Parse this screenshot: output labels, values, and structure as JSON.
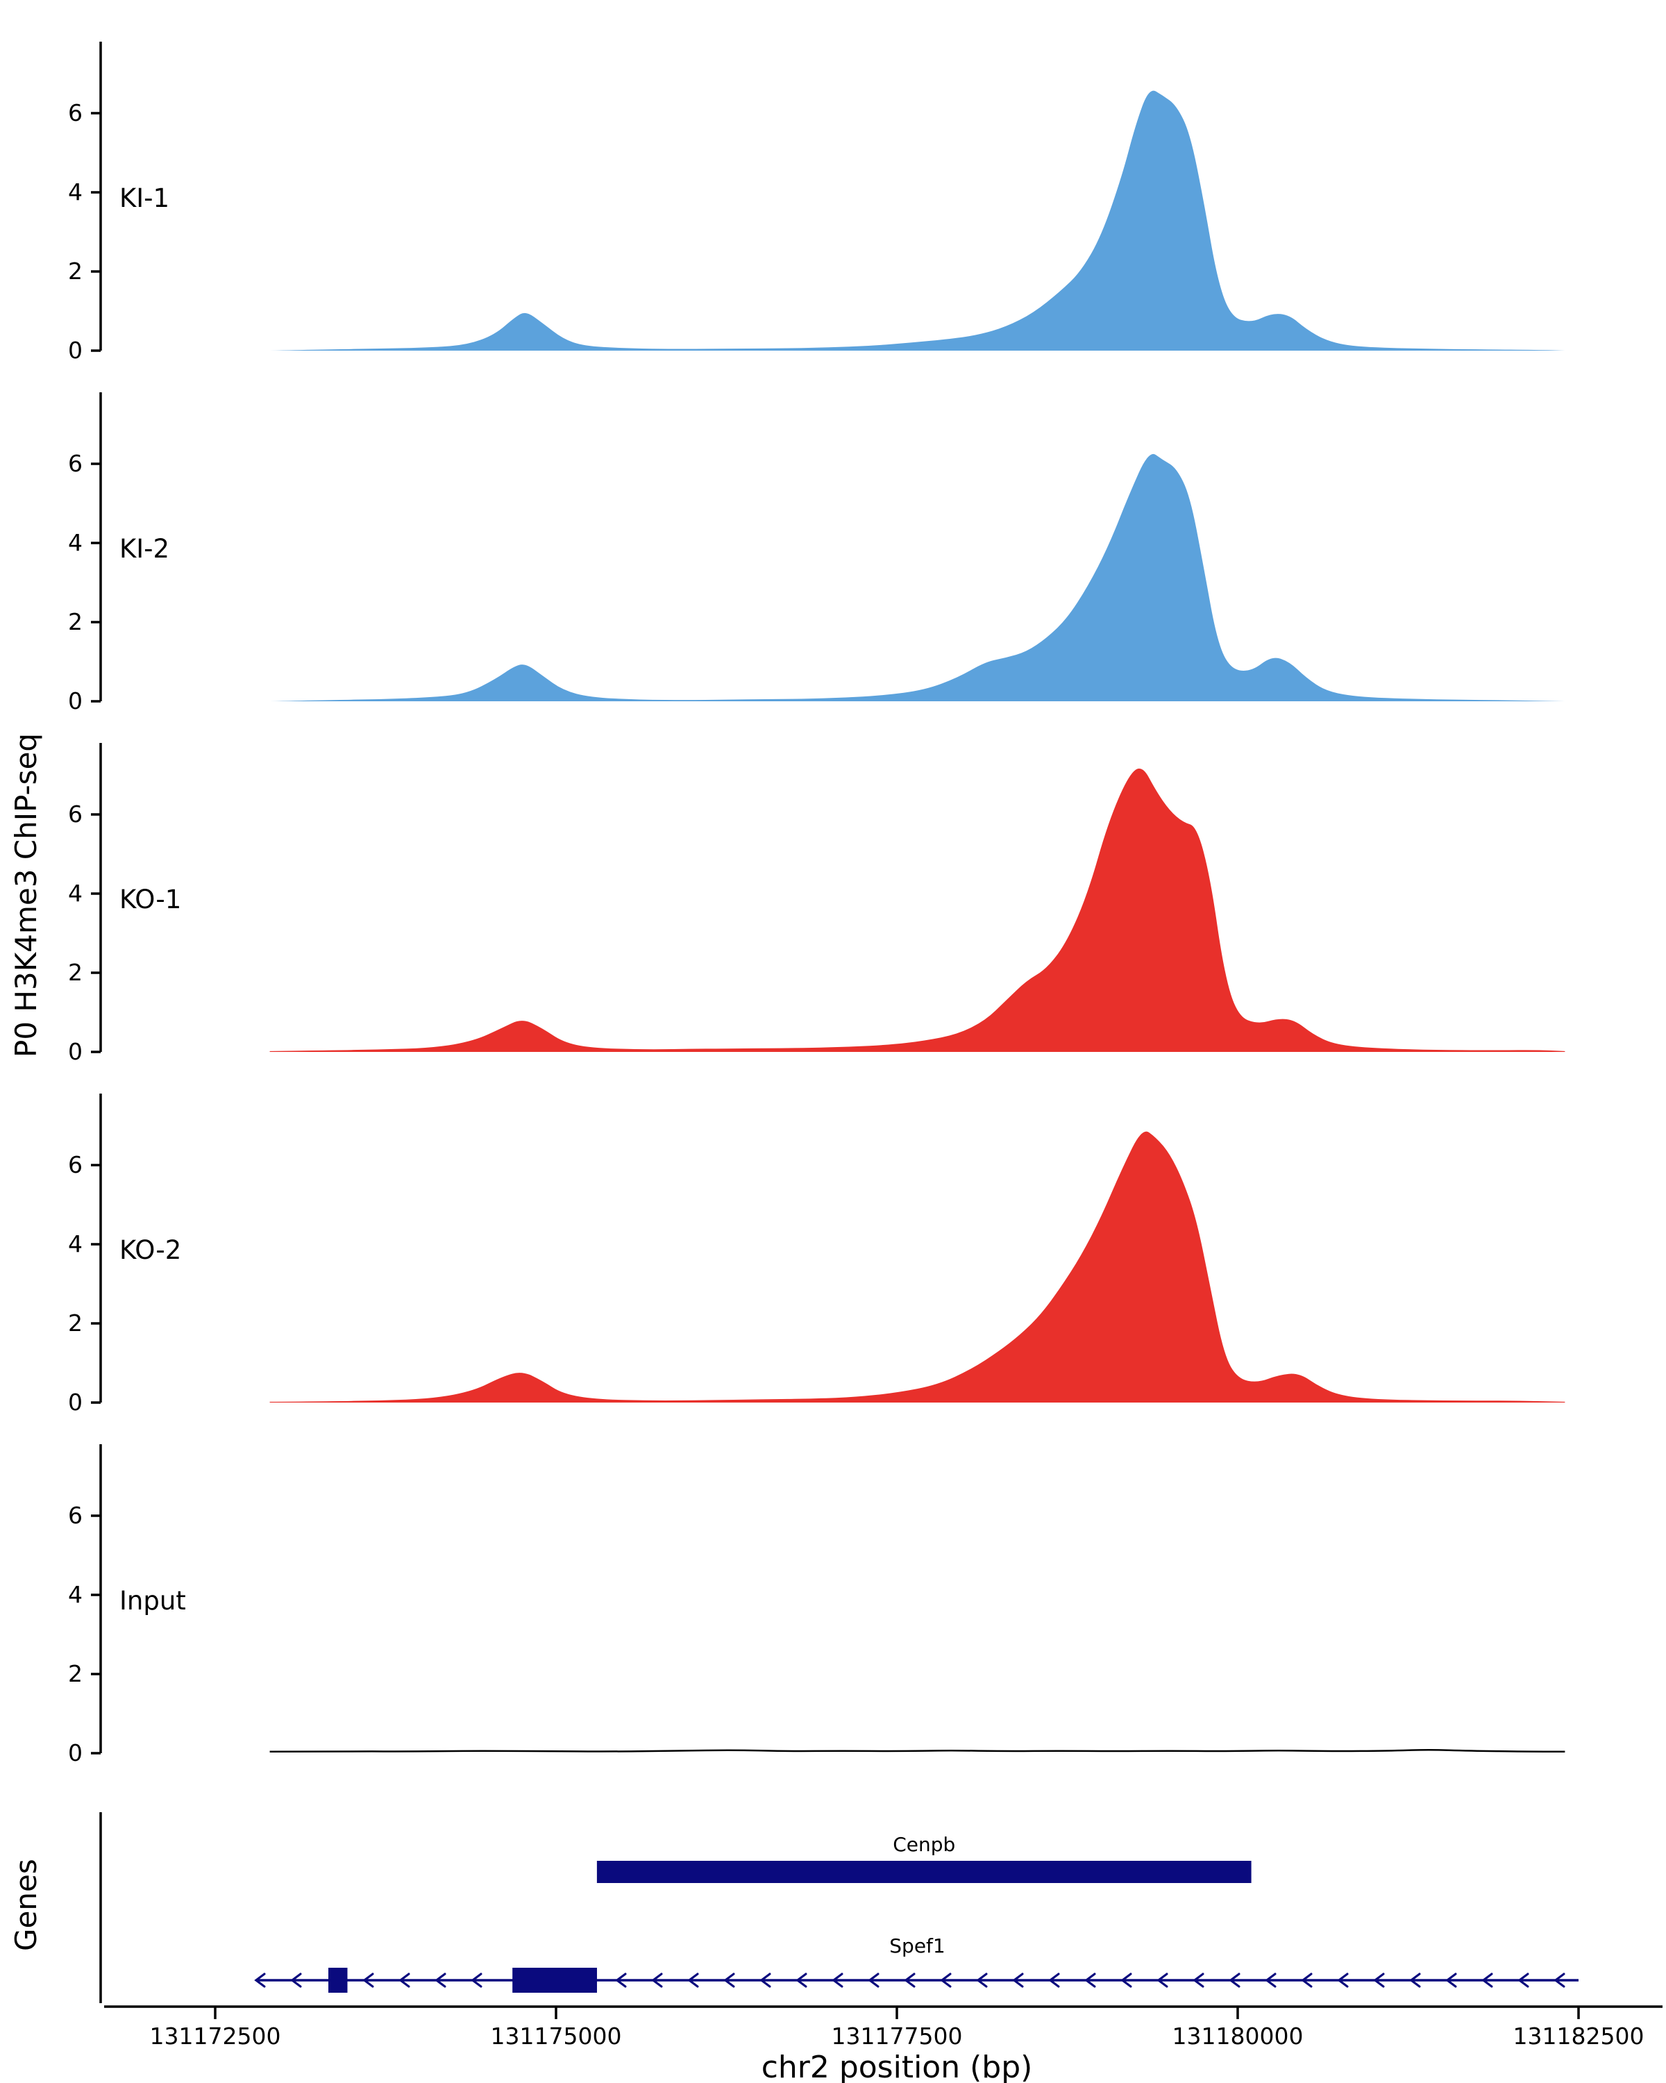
{
  "labels": {
    "y_axis": "P0 H3K4me3 ChIP-seq",
    "genes_axis": "Genes",
    "x_axis": "chr2 position (bp)"
  },
  "colors": {
    "ki": "#5CA2DC",
    "ko": "#E8302B",
    "input": "#000000",
    "gene": "#0A0A7E",
    "axis": "#000000"
  },
  "chart_data": {
    "type": "area",
    "title": "",
    "xlabel": "chr2 position (bp)",
    "ylabel": "P0 H3K4me3 ChIP-seq",
    "x_range": [
      131172500,
      131182500
    ],
    "x_ticks": [
      131172500,
      131175000,
      131177500,
      131180000,
      131182500
    ],
    "x_tick_labels": [
      "131172500",
      "131175000",
      "131177500",
      "131180000",
      "131182500"
    ],
    "y_ticks": [
      0,
      2,
      4,
      6
    ],
    "y_max": 7.5,
    "grid": false,
    "legend": "none",
    "tracks": [
      {
        "name": "KI-1",
        "color": "ki",
        "style": "area",
        "points": [
          [
            131172900,
            0.0
          ],
          [
            131173300,
            0.03
          ],
          [
            131173700,
            0.05
          ],
          [
            131174100,
            0.08
          ],
          [
            131174350,
            0.15
          ],
          [
            131174550,
            0.4
          ],
          [
            131174700,
            0.85
          ],
          [
            131174780,
            1.0
          ],
          [
            131174900,
            0.7
          ],
          [
            131175050,
            0.3
          ],
          [
            131175200,
            0.12
          ],
          [
            131175500,
            0.06
          ],
          [
            131175900,
            0.04
          ],
          [
            131176300,
            0.05
          ],
          [
            131176700,
            0.06
          ],
          [
            131177000,
            0.08
          ],
          [
            131177300,
            0.12
          ],
          [
            131177600,
            0.2
          ],
          [
            131177900,
            0.3
          ],
          [
            131178100,
            0.4
          ],
          [
            131178300,
            0.6
          ],
          [
            131178500,
            0.95
          ],
          [
            131178700,
            1.5
          ],
          [
            131178850,
            2.0
          ],
          [
            131179000,
            2.9
          ],
          [
            131179150,
            4.4
          ],
          [
            131179250,
            5.7
          ],
          [
            131179350,
            6.65
          ],
          [
            131179450,
            6.45
          ],
          [
            131179550,
            6.2
          ],
          [
            131179650,
            5.5
          ],
          [
            131179750,
            3.8
          ],
          [
            131179850,
            1.8
          ],
          [
            131179950,
            0.85
          ],
          [
            131180100,
            0.7
          ],
          [
            131180250,
            0.95
          ],
          [
            131180380,
            0.9
          ],
          [
            131180500,
            0.55
          ],
          [
            131180650,
            0.25
          ],
          [
            131180850,
            0.1
          ],
          [
            131181300,
            0.05
          ],
          [
            131181800,
            0.03
          ],
          [
            131182200,
            0.02
          ],
          [
            131182400,
            0.0
          ]
        ]
      },
      {
        "name": "KI-2",
        "color": "ki",
        "style": "area",
        "points": [
          [
            131172900,
            0.0
          ],
          [
            131173300,
            0.03
          ],
          [
            131173700,
            0.05
          ],
          [
            131174100,
            0.1
          ],
          [
            131174350,
            0.2
          ],
          [
            131174550,
            0.55
          ],
          [
            131174700,
            0.9
          ],
          [
            131174780,
            0.95
          ],
          [
            131174900,
            0.65
          ],
          [
            131175050,
            0.28
          ],
          [
            131175250,
            0.1
          ],
          [
            131175600,
            0.04
          ],
          [
            131176000,
            0.03
          ],
          [
            131176400,
            0.05
          ],
          [
            131176800,
            0.06
          ],
          [
            131177100,
            0.09
          ],
          [
            131177400,
            0.15
          ],
          [
            131177700,
            0.28
          ],
          [
            131177950,
            0.6
          ],
          [
            131178150,
            1.0
          ],
          [
            131178300,
            1.1
          ],
          [
            131178450,
            1.25
          ],
          [
            131178600,
            1.6
          ],
          [
            131178750,
            2.1
          ],
          [
            131178900,
            2.9
          ],
          [
            131179050,
            3.9
          ],
          [
            131179200,
            5.2
          ],
          [
            131179350,
            6.35
          ],
          [
            131179450,
            6.1
          ],
          [
            131179550,
            5.9
          ],
          [
            131179650,
            5.2
          ],
          [
            131179750,
            3.4
          ],
          [
            131179850,
            1.5
          ],
          [
            131179950,
            0.8
          ],
          [
            131180100,
            0.75
          ],
          [
            131180250,
            1.15
          ],
          [
            131180380,
            1.0
          ],
          [
            131180500,
            0.6
          ],
          [
            131180650,
            0.25
          ],
          [
            131180900,
            0.1
          ],
          [
            131181400,
            0.05
          ],
          [
            131181900,
            0.03
          ],
          [
            131182400,
            0.0
          ]
        ]
      },
      {
        "name": "KO-1",
        "color": "ko",
        "style": "area",
        "points": [
          [
            131172900,
            0.02
          ],
          [
            131173300,
            0.04
          ],
          [
            131173700,
            0.06
          ],
          [
            131174100,
            0.1
          ],
          [
            131174400,
            0.28
          ],
          [
            131174600,
            0.6
          ],
          [
            131174750,
            0.85
          ],
          [
            131174900,
            0.6
          ],
          [
            131175050,
            0.25
          ],
          [
            131175250,
            0.1
          ],
          [
            131175650,
            0.06
          ],
          [
            131176050,
            0.08
          ],
          [
            131176450,
            0.09
          ],
          [
            131176850,
            0.1
          ],
          [
            131177150,
            0.13
          ],
          [
            131177450,
            0.18
          ],
          [
            131177700,
            0.28
          ],
          [
            131177950,
            0.45
          ],
          [
            131178150,
            0.8
          ],
          [
            131178300,
            1.3
          ],
          [
            131178450,
            1.8
          ],
          [
            131178600,
            2.1
          ],
          [
            131178750,
            2.8
          ],
          [
            131178900,
            4.0
          ],
          [
            131179050,
            5.8
          ],
          [
            131179200,
            7.0
          ],
          [
            131179300,
            7.25
          ],
          [
            131179400,
            6.6
          ],
          [
            131179500,
            6.1
          ],
          [
            131179600,
            5.8
          ],
          [
            131179700,
            5.7
          ],
          [
            131179800,
            4.4
          ],
          [
            131179900,
            2.0
          ],
          [
            131180000,
            0.9
          ],
          [
            131180150,
            0.7
          ],
          [
            131180300,
            0.85
          ],
          [
            131180420,
            0.8
          ],
          [
            131180550,
            0.45
          ],
          [
            131180700,
            0.2
          ],
          [
            131180950,
            0.1
          ],
          [
            131181400,
            0.05
          ],
          [
            131181900,
            0.04
          ],
          [
            131182200,
            0.05
          ],
          [
            131182400,
            0.02
          ]
        ]
      },
      {
        "name": "KO-2",
        "color": "ko",
        "style": "area",
        "points": [
          [
            131172900,
            0.02
          ],
          [
            131173300,
            0.03
          ],
          [
            131173700,
            0.05
          ],
          [
            131174100,
            0.1
          ],
          [
            131174400,
            0.3
          ],
          [
            131174600,
            0.65
          ],
          [
            131174750,
            0.8
          ],
          [
            131174900,
            0.55
          ],
          [
            131175050,
            0.22
          ],
          [
            131175300,
            0.08
          ],
          [
            131175700,
            0.05
          ],
          [
            131176100,
            0.06
          ],
          [
            131176500,
            0.08
          ],
          [
            131176900,
            0.1
          ],
          [
            131177200,
            0.14
          ],
          [
            131177500,
            0.25
          ],
          [
            131177800,
            0.45
          ],
          [
            131178050,
            0.85
          ],
          [
            131178250,
            1.3
          ],
          [
            131178400,
            1.7
          ],
          [
            131178550,
            2.2
          ],
          [
            131178700,
            2.9
          ],
          [
            131178850,
            3.7
          ],
          [
            131179000,
            4.7
          ],
          [
            131179150,
            5.9
          ],
          [
            131179300,
            6.95
          ],
          [
            131179400,
            6.7
          ],
          [
            131179500,
            6.3
          ],
          [
            131179600,
            5.6
          ],
          [
            131179700,
            4.6
          ],
          [
            131179800,
            2.9
          ],
          [
            131179900,
            1.2
          ],
          [
            131180000,
            0.6
          ],
          [
            131180150,
            0.5
          ],
          [
            131180300,
            0.7
          ],
          [
            131180450,
            0.75
          ],
          [
            131180600,
            0.4
          ],
          [
            131180750,
            0.18
          ],
          [
            131181000,
            0.08
          ],
          [
            131181500,
            0.05
          ],
          [
            131182000,
            0.05
          ],
          [
            131182400,
            0.02
          ]
        ]
      },
      {
        "name": "Input",
        "color": "input",
        "style": "line",
        "points": [
          [
            131172900,
            0.04
          ],
          [
            131173400,
            0.05
          ],
          [
            131173900,
            0.04
          ],
          [
            131174400,
            0.06
          ],
          [
            131174900,
            0.05
          ],
          [
            131175400,
            0.04
          ],
          [
            131175900,
            0.06
          ],
          [
            131176300,
            0.08
          ],
          [
            131176700,
            0.05
          ],
          [
            131177100,
            0.06
          ],
          [
            131177500,
            0.05
          ],
          [
            131177900,
            0.07
          ],
          [
            131178300,
            0.05
          ],
          [
            131178700,
            0.06
          ],
          [
            131179100,
            0.05
          ],
          [
            131179500,
            0.06
          ],
          [
            131179900,
            0.05
          ],
          [
            131180300,
            0.07
          ],
          [
            131180700,
            0.05
          ],
          [
            131181100,
            0.06
          ],
          [
            131181400,
            0.09
          ],
          [
            131181700,
            0.06
          ],
          [
            131182100,
            0.04
          ],
          [
            131182400,
            0.04
          ]
        ]
      }
    ],
    "genes": {
      "label": "Genes",
      "items": [
        {
          "name": "Cenpb",
          "type": "box",
          "strand": "+",
          "start": 131175300,
          "end": 131180100
        },
        {
          "name": "Spef1",
          "type": "transcript",
          "strand": "-",
          "start": 131172800,
          "end": 131182500,
          "exons": [
            [
              131173330,
              131173470
            ],
            [
              131174680,
              131175300
            ]
          ]
        }
      ]
    }
  }
}
